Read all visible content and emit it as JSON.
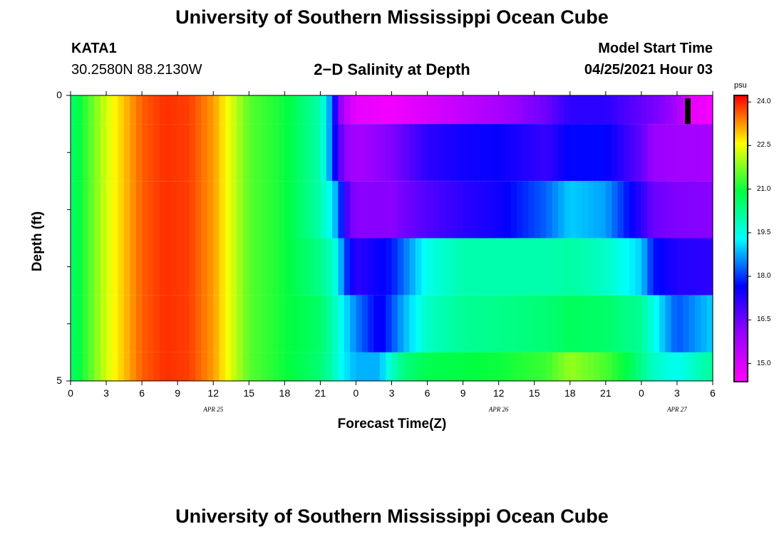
{
  "page": {
    "title_top": "University of Southern Mississippi Ocean Cube",
    "title_bottom": "University of Southern Mississippi Ocean Cube",
    "station_id": "KATA1",
    "station_coords": "30.2580N  88.2130W",
    "plot_title": "2−D Salinity at Depth",
    "model_start_label": "Model Start Time",
    "model_start_value": "04/25/2021 Hour 03"
  },
  "chart_data": {
    "type": "heatmap",
    "title": "2-D Salinity at Depth",
    "xlabel": "Forecast Time(Z)",
    "ylabel": "Depth (ft)",
    "x_range_hours": [
      0,
      54
    ],
    "y_range_ft": [
      0,
      5
    ],
    "x_tick_labels": [
      "0",
      "3",
      "6",
      "9",
      "12",
      "15",
      "18",
      "21",
      "0",
      "3",
      "6",
      "9",
      "12",
      "15",
      "18",
      "21",
      "0",
      "3",
      "6"
    ],
    "y_tick_labels": [
      "0",
      "5"
    ],
    "y_minor_ticks": [
      1,
      2,
      3,
      4
    ],
    "date_labels": [
      {
        "text": "APR  25",
        "hour": 12
      },
      {
        "text": "APR  26",
        "hour": 36
      },
      {
        "text": "APR  27",
        "hour": 51
      }
    ],
    "colorbar": {
      "unit": "psu",
      "min": 14.4,
      "max": 24.2,
      "tick_labels": [
        "24.0",
        "22.5",
        "21.0",
        "19.5",
        "18.0",
        "16.5",
        "15.0"
      ],
      "tick_values": [
        24.0,
        22.5,
        21.0,
        19.5,
        18.0,
        16.5,
        15.0
      ],
      "colors": [
        "#ff00ff",
        "#9900ff",
        "#0000ff",
        "#00ffff",
        "#00ff40",
        "#ffff00",
        "#ff0000"
      ]
    },
    "depth_layers_ft": [
      [
        0,
        0.5
      ],
      [
        0.5,
        1.5
      ],
      [
        1.5,
        2.5
      ],
      [
        2.5,
        3.5
      ],
      [
        3.5,
        4.5
      ],
      [
        4.5,
        5
      ]
    ],
    "series": [
      {
        "name": "0 ft",
        "times": [
          0,
          3,
          6,
          8,
          10,
          12,
          15,
          18,
          21,
          21.5,
          22,
          22.5,
          23,
          24,
          27,
          30,
          33,
          36,
          40,
          42,
          45,
          48,
          50,
          51,
          51.6,
          52,
          54
        ],
        "values": [
          20.5,
          22.3,
          23.6,
          23.9,
          23.8,
          23.2,
          21.5,
          21.0,
          20.0,
          19.3,
          18.2,
          16.5,
          15.5,
          14.8,
          14.6,
          15.0,
          15.4,
          15.8,
          16.5,
          17.2,
          17.2,
          16.6,
          16.2,
          15.8,
          15.3,
          14.8,
          14.6
        ]
      },
      {
        "name": "1 ft",
        "times": [
          0,
          3,
          6,
          8,
          10,
          12,
          15,
          18,
          21,
          21.5,
          22,
          22.5,
          23,
          24,
          27,
          30,
          33,
          36,
          40,
          42,
          45,
          48,
          49,
          51,
          54
        ],
        "values": [
          20.5,
          22.3,
          23.6,
          23.9,
          23.8,
          23.2,
          21.5,
          21.0,
          20.0,
          19.3,
          18.2,
          17.0,
          16.2,
          15.8,
          16.3,
          17.2,
          17.5,
          17.6,
          17.1,
          17.7,
          17.7,
          16.6,
          16.0,
          15.9,
          15.8
        ]
      },
      {
        "name": "2 ft",
        "times": [
          0,
          3,
          6,
          8,
          10,
          12,
          15,
          18,
          21,
          21.5,
          22,
          22.5,
          23,
          23.5,
          24,
          27,
          30,
          33,
          36,
          40,
          42,
          45,
          48,
          49,
          51,
          54
        ],
        "values": [
          20.5,
          22.3,
          23.6,
          23.9,
          23.8,
          23.2,
          21.5,
          21.0,
          20.0,
          19.6,
          19.2,
          18.5,
          17.3,
          16.5,
          16.2,
          16.2,
          16.8,
          17.2,
          17.5,
          18.3,
          19.0,
          18.7,
          17.2,
          16.5,
          16.3,
          16.2
        ]
      },
      {
        "name": "3 ft",
        "times": [
          0,
          3,
          6,
          8,
          10,
          12,
          15,
          18,
          21,
          22,
          22.5,
          23,
          24,
          27,
          30,
          33,
          36,
          40,
          42,
          45,
          48,
          49,
          51,
          54
        ],
        "values": [
          20.5,
          22.3,
          23.6,
          23.9,
          23.8,
          23.2,
          21.5,
          21.0,
          20.3,
          19.8,
          19.3,
          18.2,
          17.2,
          17.8,
          19.5,
          20.0,
          20.0,
          20.0,
          20.1,
          19.8,
          19.0,
          17.8,
          17.3,
          17.2
        ]
      },
      {
        "name": "4 ft",
        "times": [
          0,
          3,
          6,
          8,
          10,
          12,
          15,
          18,
          21,
          22,
          23,
          24,
          26,
          28,
          30,
          33,
          36,
          40,
          42,
          45,
          48,
          50,
          51,
          54
        ],
        "values": [
          20.5,
          22.3,
          23.6,
          23.9,
          23.8,
          23.2,
          21.5,
          21.0,
          20.6,
          20.0,
          19.2,
          18.5,
          17.5,
          18.8,
          19.8,
          20.2,
          20.3,
          20.5,
          20.7,
          20.6,
          20.2,
          18.8,
          18.2,
          19.0
        ]
      },
      {
        "name": "5 ft",
        "times": [
          0,
          3,
          6,
          8,
          10,
          12,
          15,
          18,
          21,
          22,
          23,
          24,
          26,
          27,
          28,
          30,
          33,
          36,
          40,
          42,
          45,
          47,
          48,
          49,
          50,
          51,
          54
        ],
        "values": [
          20.5,
          22.3,
          23.6,
          23.9,
          23.8,
          23.2,
          21.5,
          21.0,
          20.5,
          20.0,
          19.2,
          18.8,
          18.8,
          19.8,
          20.4,
          20.8,
          20.9,
          21.0,
          21.3,
          21.9,
          21.4,
          20.8,
          20.3,
          19.8,
          19.6,
          19.4,
          20.2
        ]
      }
    ],
    "marker": {
      "hour": 51.9,
      "depth_from_ft": 0.05,
      "depth_to_ft": 0.5,
      "color": "#000000"
    }
  }
}
